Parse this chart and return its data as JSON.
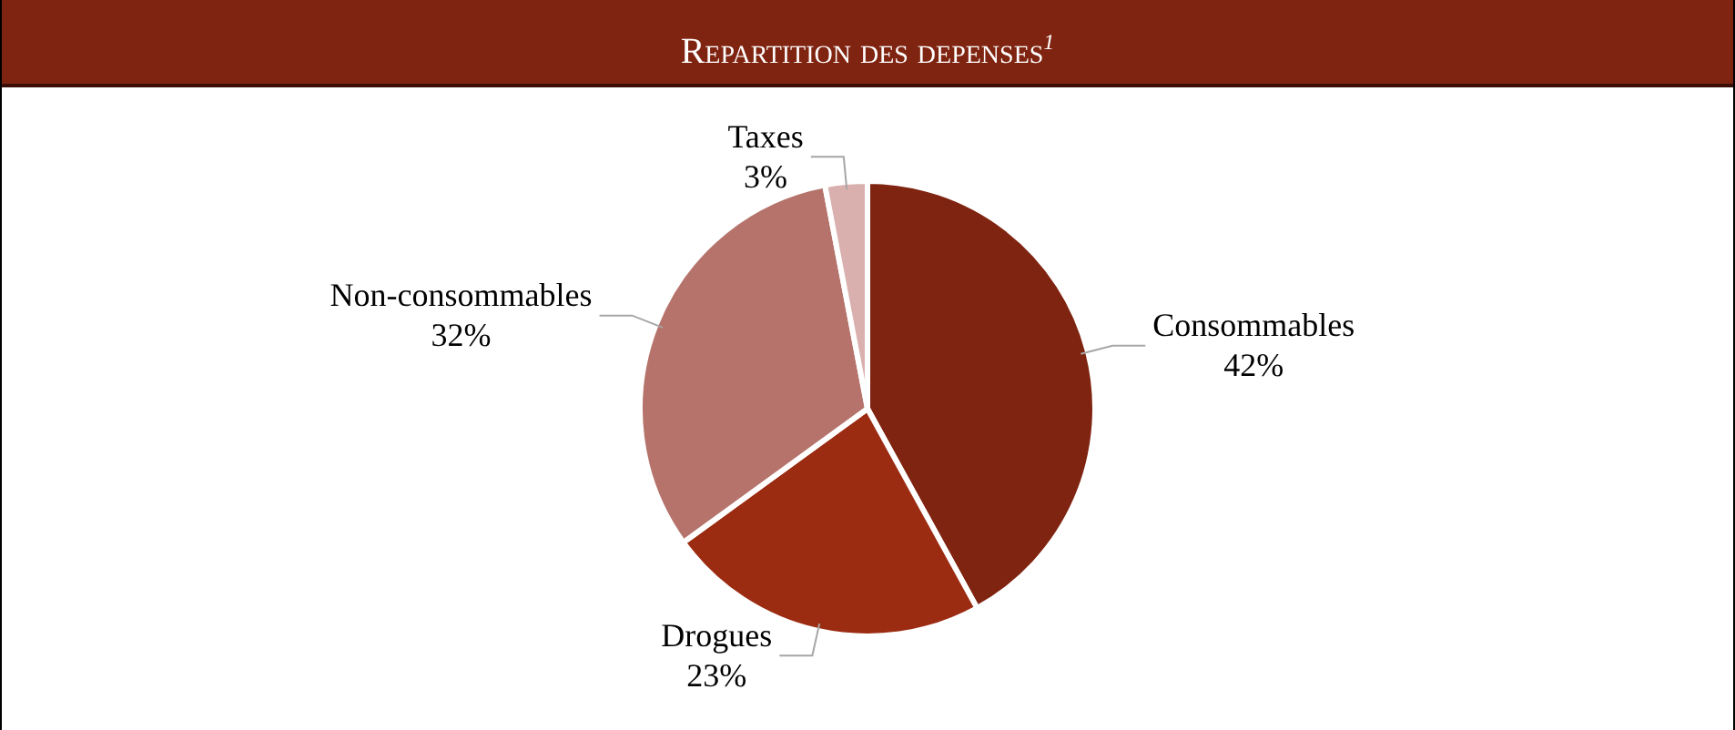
{
  "chart_data": {
    "type": "pie",
    "title": "Repartition des depenses$^{1}$",
    "categories": [
      "Consommables",
      "Drogues",
      "Non-consommables",
      "Taxes"
    ],
    "values": [
      42,
      23,
      32,
      3
    ],
    "colors": [
      "#7f2410",
      "#9b2c12",
      "#b5736b",
      "#d9b0ad"
    ],
    "value_labels": [
      "42%",
      "23%",
      "32%",
      "3%"
    ],
    "legend": false
  }
}
